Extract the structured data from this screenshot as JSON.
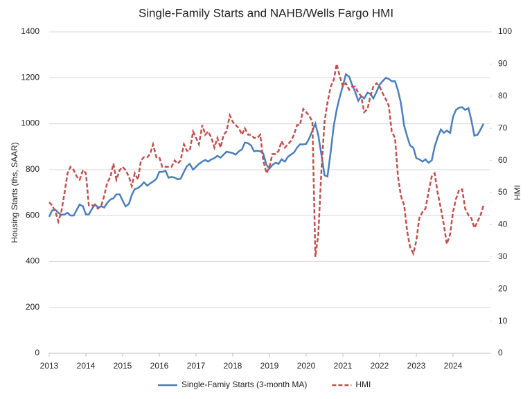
{
  "chart_data": {
    "type": "line",
    "title": "Single-Family Starts and NAHB/Wells Fargo HMI",
    "y_label": "Housing Starts (ths, SAAR)",
    "y2_label": "HMI",
    "x": [
      2013,
      2013.08,
      2013.17,
      2013.25,
      2013.33,
      2013.42,
      2013.5,
      2013.58,
      2013.67,
      2013.75,
      2013.83,
      2013.92,
      2014,
      2014.08,
      2014.17,
      2014.25,
      2014.33,
      2014.42,
      2014.5,
      2014.58,
      2014.67,
      2014.75,
      2014.83,
      2014.92,
      2015,
      2015.08,
      2015.17,
      2015.25,
      2015.33,
      2015.42,
      2015.5,
      2015.58,
      2015.67,
      2015.75,
      2015.83,
      2015.92,
      2016,
      2016.08,
      2016.17,
      2016.25,
      2016.33,
      2016.42,
      2016.5,
      2016.58,
      2016.67,
      2016.75,
      2016.83,
      2016.92,
      2017,
      2017.08,
      2017.17,
      2017.25,
      2017.33,
      2017.42,
      2017.5,
      2017.58,
      2017.67,
      2017.75,
      2017.83,
      2017.92,
      2018,
      2018.08,
      2018.17,
      2018.25,
      2018.33,
      2018.42,
      2018.5,
      2018.58,
      2018.67,
      2018.75,
      2018.83,
      2018.92,
      2019,
      2019.08,
      2019.17,
      2019.25,
      2019.33,
      2019.42,
      2019.5,
      2019.58,
      2019.67,
      2019.75,
      2019.83,
      2019.92,
      2020,
      2020.08,
      2020.17,
      2020.25,
      2020.33,
      2020.42,
      2020.5,
      2020.58,
      2020.67,
      2020.75,
      2020.83,
      2020.92,
      2021,
      2021.08,
      2021.17,
      2021.25,
      2021.33,
      2021.42,
      2021.5,
      2021.58,
      2021.67,
      2021.75,
      2021.83,
      2021.92,
      2022,
      2022.08,
      2022.17,
      2022.25,
      2022.33,
      2022.42,
      2022.5,
      2022.58,
      2022.67,
      2022.75,
      2022.83,
      2022.92,
      2023,
      2023.08,
      2023.17,
      2023.25,
      2023.33,
      2023.42,
      2023.5,
      2023.58,
      2023.67,
      2023.75,
      2023.83,
      2023.92,
      2024,
      2024.08,
      2024.17,
      2024.25,
      2024.33,
      2024.42,
      2024.5,
      2024.58,
      2024.67,
      2024.75,
      2024.83
    ],
    "series": [
      {
        "name": "Single-Famiy Starts (3-month MA)",
        "color": "#4a7ebb",
        "dash": false,
        "values": [
          595,
          622,
          625,
          612,
          603,
          605,
          612,
          600,
          600,
          625,
          648,
          640,
          605,
          605,
          630,
          648,
          635,
          640,
          635,
          655,
          670,
          675,
          692,
          692,
          665,
          640,
          650,
          690,
          715,
          720,
          730,
          745,
          730,
          740,
          748,
          760,
          790,
          790,
          795,
          765,
          768,
          765,
          758,
          760,
          790,
          815,
          825,
          800,
          812,
          825,
          835,
          842,
          835,
          845,
          850,
          860,
          852,
          865,
          878,
          875,
          872,
          865,
          880,
          888,
          918,
          915,
          905,
          880,
          882,
          880,
          870,
          820,
          805,
          820,
          830,
          825,
          845,
          835,
          855,
          865,
          875,
          895,
          910,
          910,
          912,
          935,
          970,
          1000,
          950,
          860,
          775,
          770,
          880,
          990,
          1060,
          1120,
          1165,
          1215,
          1205,
          1170,
          1140,
          1100,
          1120,
          1110,
          1135,
          1130,
          1110,
          1140,
          1170,
          1185,
          1200,
          1195,
          1185,
          1185,
          1145,
          1090,
          990,
          945,
          905,
          895,
          850,
          845,
          835,
          845,
          830,
          840,
          900,
          940,
          975,
          960,
          970,
          960,
          1030,
          1060,
          1070,
          1072,
          1060,
          1068,
          1015,
          948,
          952,
          975,
          1000
        ]
      },
      {
        "name": "HMI",
        "color": "#c0504d",
        "dash": true,
        "axis": "y2",
        "values": [
          47,
          46,
          44,
          41,
          44,
          50,
          56,
          58,
          57,
          55,
          54,
          57,
          56,
          46,
          46,
          46,
          45,
          46,
          49,
          53,
          55,
          59,
          54,
          57,
          58,
          57,
          55,
          52,
          56,
          54,
          60,
          61,
          61,
          62,
          65,
          61,
          61,
          58,
          58,
          58,
          58,
          60,
          59,
          60,
          65,
          63,
          63,
          69,
          67,
          65,
          71,
          68,
          69,
          67,
          64,
          67,
          64,
          68,
          69,
          74,
          72,
          71,
          70,
          68,
          70,
          68,
          68,
          67,
          67,
          68,
          60,
          56,
          58,
          62,
          62,
          63,
          66,
          64,
          65,
          66,
          68,
          71,
          71,
          76,
          75,
          74,
          72,
          30,
          37,
          58,
          72,
          78,
          83,
          85,
          90,
          86,
          83,
          84,
          82,
          83,
          83,
          81,
          80,
          75,
          76,
          80,
          83,
          84,
          83,
          81,
          79,
          77,
          69,
          67,
          55,
          49,
          46,
          38,
          33,
          31,
          35,
          42,
          44,
          45,
          50,
          55,
          56,
          50,
          45,
          40,
          34,
          37,
          44,
          48,
          51,
          51,
          45,
          43,
          42,
          39,
          41,
          43,
          46
        ]
      }
    ],
    "xlim": [
      2013,
      2025
    ],
    "xticks": [
      2013,
      2014,
      2015,
      2016,
      2017,
      2018,
      2019,
      2020,
      2021,
      2022,
      2023,
      2024
    ],
    "ylim": [
      0,
      1400
    ],
    "yticks": [
      0,
      200,
      400,
      600,
      800,
      1000,
      1200,
      1400
    ],
    "y2lim": [
      0,
      100
    ],
    "y2ticks": [
      0,
      10,
      20,
      30,
      40,
      50,
      60,
      70,
      80,
      90,
      100
    ],
    "grid": true
  }
}
